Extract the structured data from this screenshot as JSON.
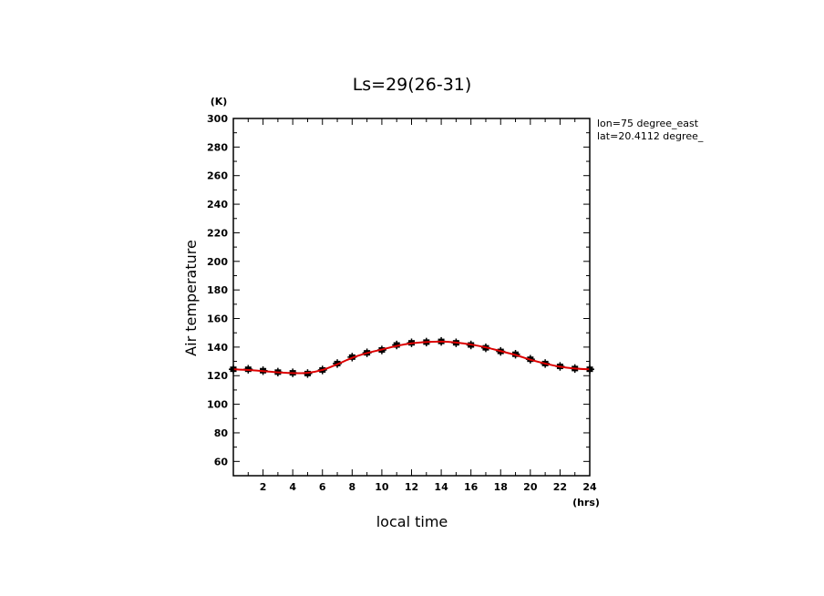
{
  "chart_data": {
    "type": "line",
    "title": "Ls=29(26-31)",
    "xlabel": "local time",
    "ylabel": "Air temperature",
    "x_unit": "(hrs)",
    "y_unit": "(K)",
    "xlim": [
      0,
      24
    ],
    "ylim": [
      50,
      300
    ],
    "x_ticks": [
      2,
      4,
      6,
      8,
      10,
      12,
      14,
      16,
      18,
      20,
      22,
      24
    ],
    "y_ticks": [
      60,
      80,
      100,
      120,
      140,
      160,
      180,
      200,
      220,
      240,
      260,
      280,
      300
    ],
    "annotations": [
      "lon=75 degree_east",
      "lat=20.4112 degree_"
    ],
    "grid": false,
    "colors": {
      "fit_line": "#dd0000",
      "points": "#000000"
    },
    "series": [
      {
        "kind": "points_with_error_bars",
        "x": [
          0,
          1,
          2,
          3,
          4,
          5,
          6,
          7,
          8,
          9,
          10,
          11,
          12,
          13,
          14,
          15,
          16,
          17,
          18,
          19,
          20,
          21,
          22,
          23,
          24
        ],
        "y": [
          124.5,
          124.5,
          123.5,
          122.5,
          122,
          121.5,
          124,
          128.5,
          133,
          136,
          138,
          141.5,
          143,
          143.5,
          144,
          143,
          141.5,
          139.5,
          137,
          135,
          131.5,
          128.5,
          126.5,
          125,
          124.5
        ],
        "err": [
          3,
          3,
          3,
          3,
          3,
          3,
          3,
          3,
          3,
          3,
          3,
          3,
          3,
          3,
          3,
          3,
          3,
          3,
          3,
          3,
          3,
          3,
          3,
          3,
          3
        ]
      },
      {
        "kind": "fit_curve",
        "x": [
          0,
          1,
          2,
          3,
          4,
          5,
          6,
          7,
          8,
          9,
          10,
          11,
          12,
          13,
          14,
          15,
          16,
          17,
          18,
          19,
          20,
          21,
          22,
          23,
          24
        ],
        "y": [
          124.5,
          124,
          123.2,
          122.3,
          121.8,
          122,
          124,
          128,
          132.5,
          135.8,
          138.3,
          140.8,
          142.6,
          143.5,
          143.8,
          143.2,
          141.8,
          139.8,
          137.2,
          134.5,
          131.2,
          128.5,
          126.3,
          125,
          124.5
        ]
      }
    ]
  }
}
